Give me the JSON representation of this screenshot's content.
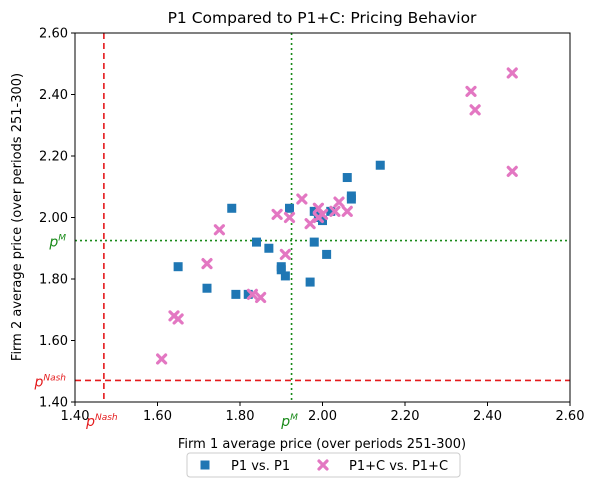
{
  "chart_data": {
    "type": "scatter",
    "title": "P1 Compared to P1+C: Pricing Behavior",
    "xlabel": "Firm 1 average price (over periods 251-300)",
    "ylabel": "Firm 2 average price (over periods 251-300)",
    "xlim": [
      1.4,
      2.6
    ],
    "ylim": [
      1.4,
      2.6
    ],
    "xticks": [
      "1.40",
      "1.60",
      "1.80",
      "2.00",
      "2.20",
      "2.40",
      "2.60"
    ],
    "yticks": [
      "1.40",
      "1.60",
      "1.80",
      "2.00",
      "2.20",
      "2.40",
      "2.60"
    ],
    "legend_position": "bottom-center-outside",
    "reference_lines": [
      {
        "label": "p",
        "label_sup": "Nash",
        "x": 1.47,
        "y": 1.47,
        "color": "#e41a1c",
        "style": "dashed"
      },
      {
        "label": "p",
        "label_sup": "M",
        "x": 1.925,
        "y": 1.925,
        "color": "#1a8a1a",
        "style": "dotted"
      }
    ],
    "series": [
      {
        "name": "P1 vs. P1",
        "marker": "square",
        "color": "#1f77b4",
        "points": [
          [
            1.65,
            1.84
          ],
          [
            1.72,
            1.77
          ],
          [
            1.78,
            2.03
          ],
          [
            1.79,
            1.75
          ],
          [
            1.82,
            1.75
          ],
          [
            1.84,
            1.92
          ],
          [
            1.87,
            1.9
          ],
          [
            1.9,
            1.84
          ],
          [
            1.9,
            1.83
          ],
          [
            1.91,
            1.81
          ],
          [
            1.92,
            2.03
          ],
          [
            1.97,
            1.79
          ],
          [
            1.98,
            1.92
          ],
          [
            1.98,
            2.02
          ],
          [
            1.99,
            2.0
          ],
          [
            2.0,
            1.99
          ],
          [
            2.01,
            1.88
          ],
          [
            2.02,
            2.02
          ],
          [
            2.06,
            2.13
          ],
          [
            2.07,
            2.07
          ],
          [
            2.07,
            2.06
          ],
          [
            2.14,
            2.17
          ]
        ]
      },
      {
        "name": "P1+C vs. P1+C",
        "marker": "x",
        "color": "#e377c2",
        "points": [
          [
            1.61,
            1.54
          ],
          [
            1.64,
            1.68
          ],
          [
            1.65,
            1.67
          ],
          [
            1.72,
            1.85
          ],
          [
            1.75,
            1.96
          ],
          [
            1.83,
            1.75
          ],
          [
            1.85,
            1.74
          ],
          [
            1.89,
            2.01
          ],
          [
            1.91,
            1.88
          ],
          [
            1.92,
            2.0
          ],
          [
            1.95,
            2.06
          ],
          [
            1.97,
            1.98
          ],
          [
            1.99,
            2.0
          ],
          [
            1.99,
            2.03
          ],
          [
            2.0,
            2.01
          ],
          [
            2.03,
            2.02
          ],
          [
            2.04,
            2.05
          ],
          [
            2.06,
            2.02
          ],
          [
            2.36,
            2.41
          ],
          [
            2.37,
            2.35
          ],
          [
            2.46,
            2.47
          ],
          [
            2.46,
            2.15
          ]
        ]
      }
    ]
  }
}
